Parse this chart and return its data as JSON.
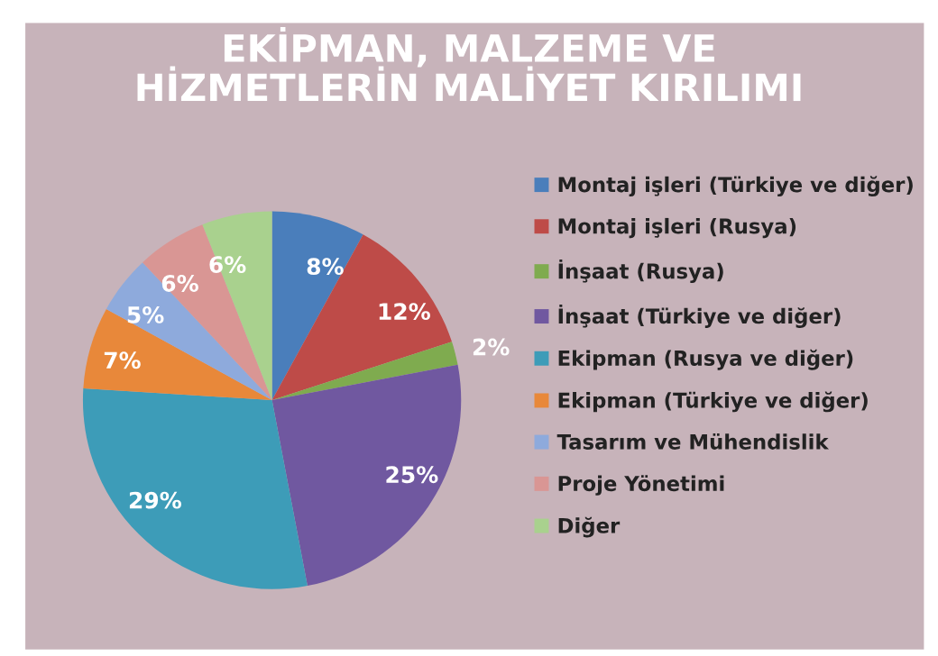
{
  "chart_data": {
    "type": "pie",
    "title": "EKİPMAN, MALZEME VE\nHİZMETLERİN MALİYET KIRILIMI",
    "categories": [
      "Montaj işleri (Türkiye ve diğer)",
      "Montaj işleri (Rusya)",
      "İnşaat (Rusya)",
      "İnşaat (Türkiye ve diğer)",
      "Ekipman (Rusya ve diğer)",
      "Ekipman (Türkiye ve diğer)",
      "Tasarım ve Mühendislik",
      "Proje Yönetimi",
      "Diğer"
    ],
    "values": [
      8,
      12,
      2,
      25,
      29,
      7,
      5,
      6,
      6
    ],
    "colors": [
      "#4a7ebb",
      "#be4b48",
      "#7fab4f",
      "#7058a0",
      "#3d9cb8",
      "#e8883a",
      "#8eaadc",
      "#d99694",
      "#a9d18e"
    ],
    "value_labels": [
      "8%",
      "12%",
      "2%",
      "25%",
      "29%",
      "7%",
      "5%",
      "6%",
      "6%"
    ],
    "legend": "right"
  }
}
